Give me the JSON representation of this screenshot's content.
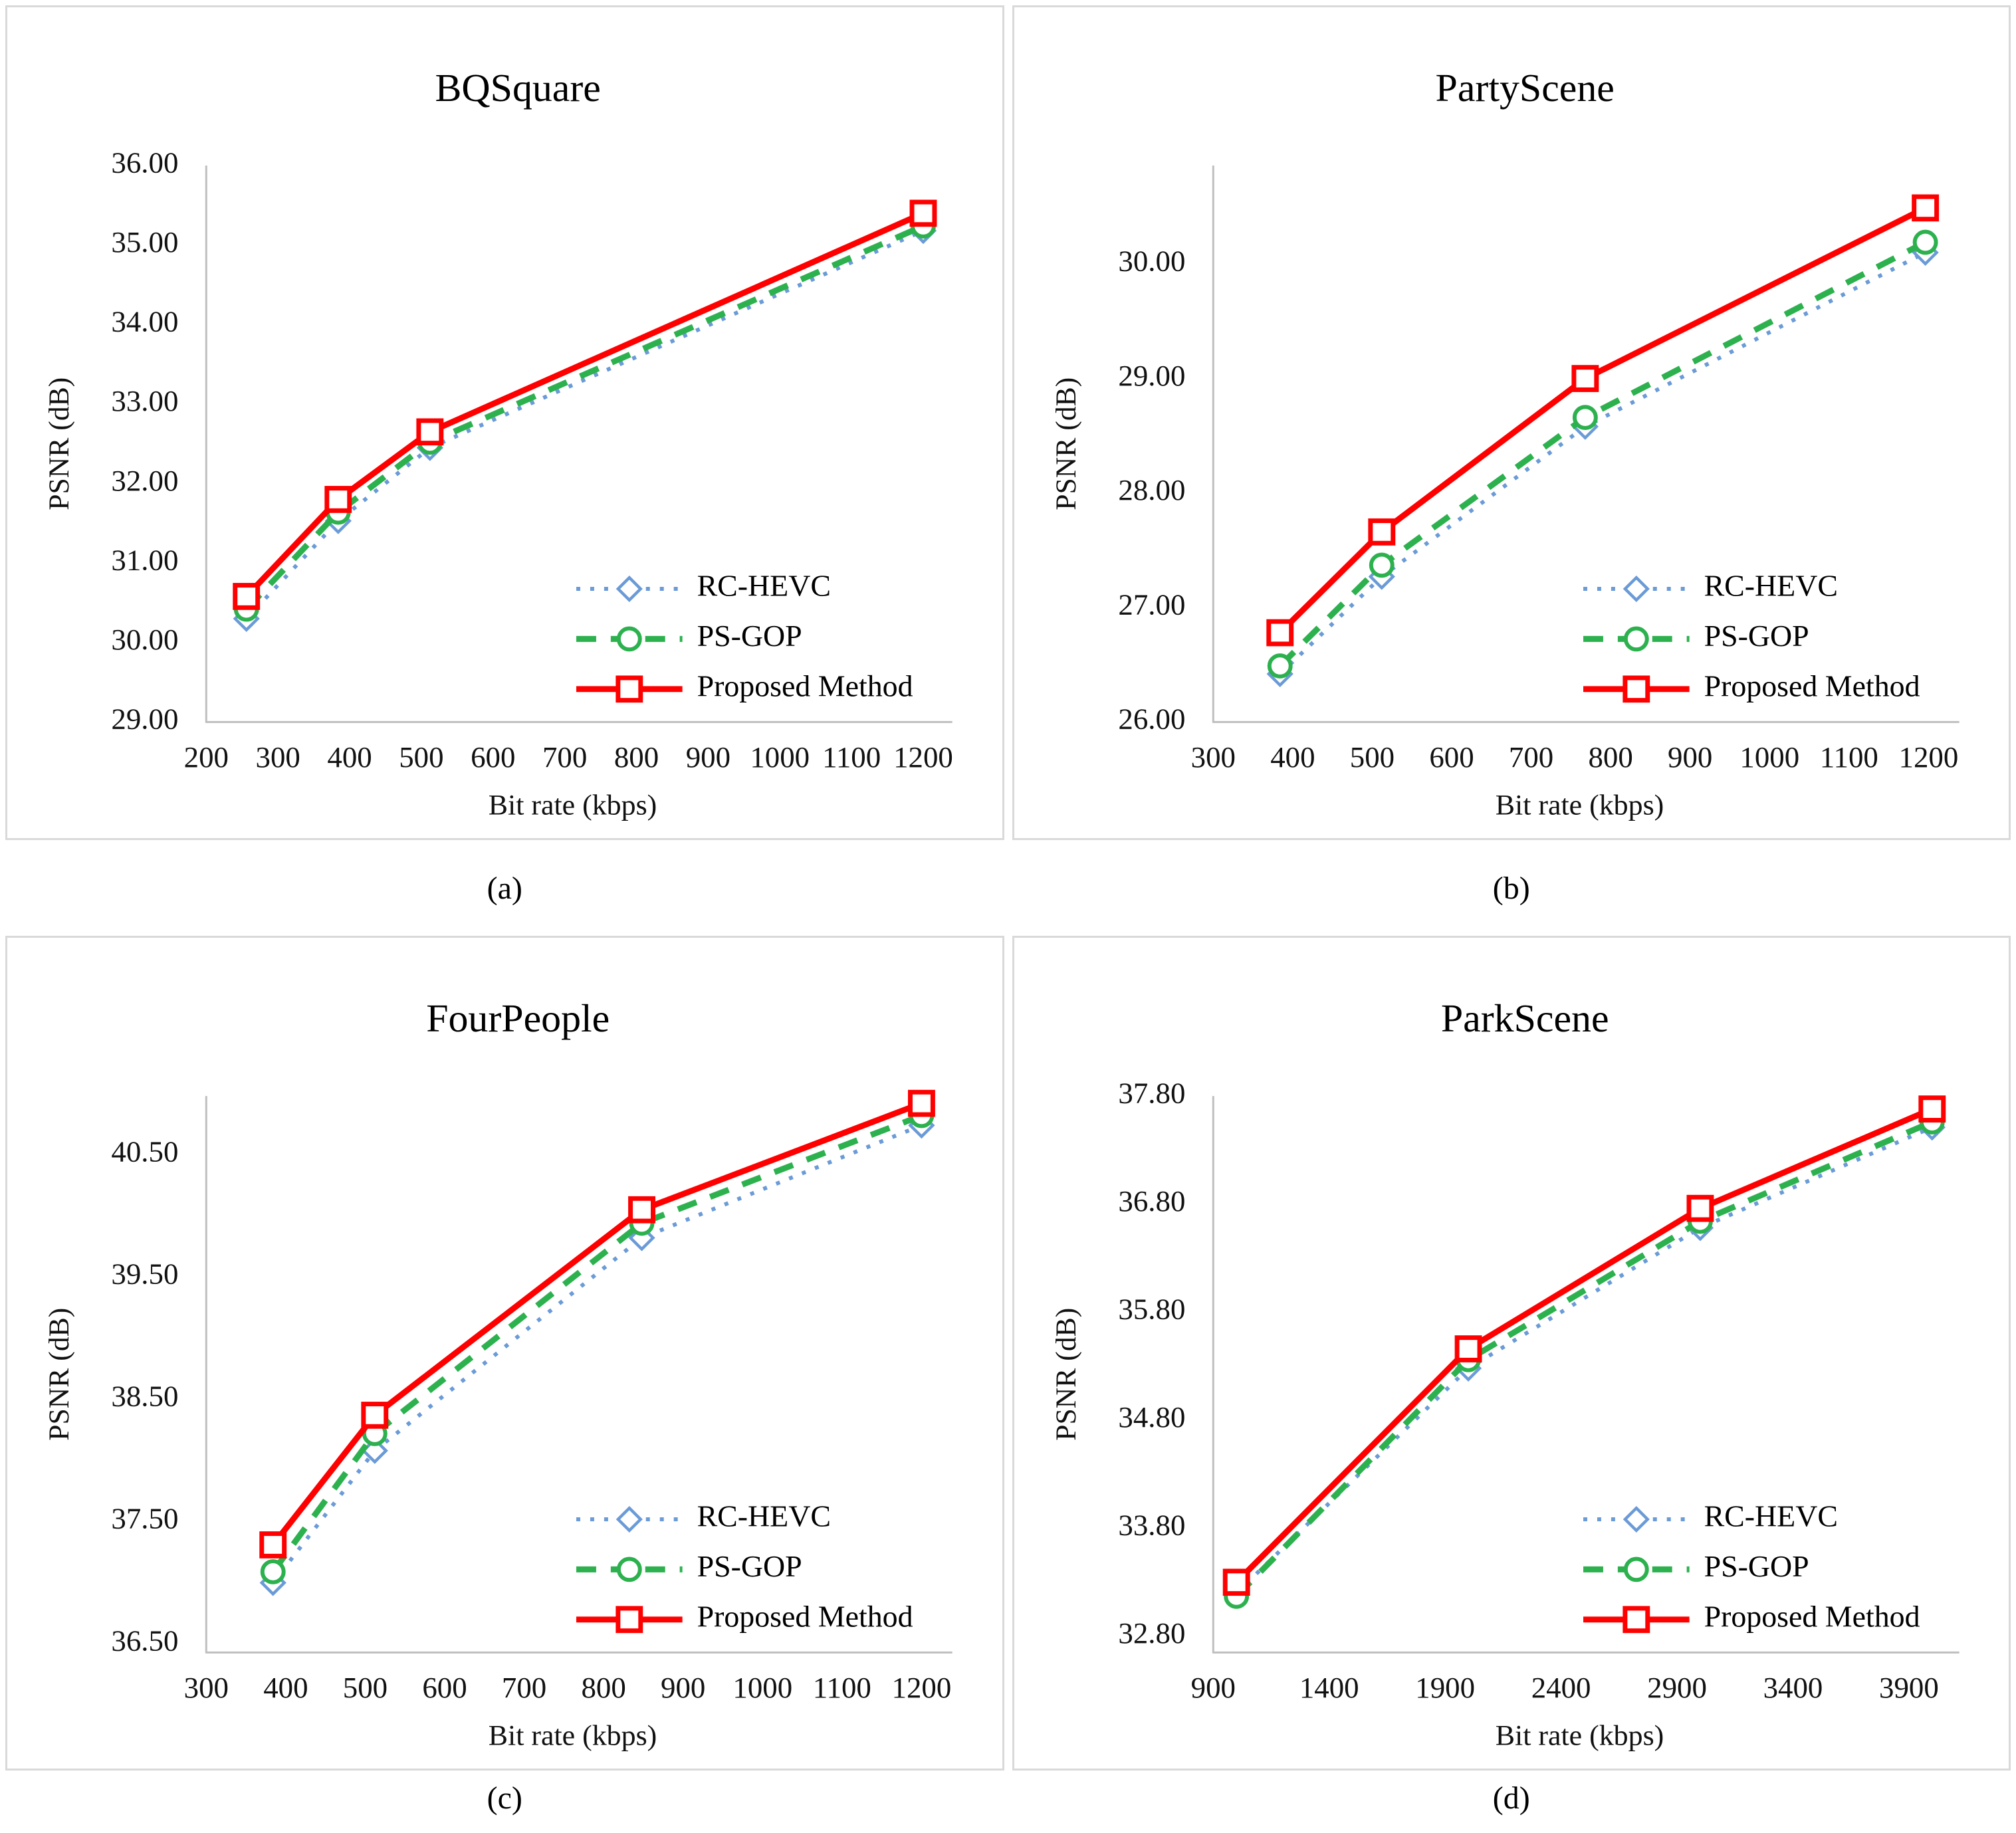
{
  "figure": {
    "panel_labels": [
      "(a)",
      "(b)",
      "(c)",
      "(d)"
    ]
  },
  "colors": {
    "rc_hevc": "#6b9bd7",
    "ps_gop": "#2db14e",
    "proposed": "#ff0000",
    "axis": "#bfbfbf",
    "panel_border": "#d9d9d9",
    "text": "#111111"
  },
  "legend": {
    "items": [
      "RC-HEVC",
      "PS-GOP",
      "Proposed Method"
    ],
    "position": "lower right"
  },
  "chart_data": [
    {
      "type": "line",
      "title": "BQSquare",
      "xlabel": "Bit rate (kbps)",
      "ylabel": "PSNR (dB)",
      "grid": false,
      "x_range": [
        200,
        1222
      ],
      "y_range": [
        29.0,
        36.0
      ],
      "x_ticks": [
        200,
        300,
        400,
        500,
        600,
        700,
        800,
        900,
        1000,
        1100,
        1200
      ],
      "y_ticks": [
        29,
        30,
        31,
        32,
        33,
        34,
        35,
        36
      ],
      "y_tick_labels": [
        "29.00",
        "30.00",
        "31.00",
        "32.00",
        "33.00",
        "34.00",
        "35.00",
        "36.00"
      ],
      "series": [
        {
          "name": "RC-HEVC",
          "color": "#6b9bd7",
          "line": "dotted",
          "marker": "diamond",
          "x": [
            256,
            384,
            512,
            1200
          ],
          "y": [
            30.3,
            31.53,
            32.45,
            35.18
          ]
        },
        {
          "name": "PS-GOP",
          "color": "#2db14e",
          "line": "dashed",
          "marker": "circle",
          "x": [
            256,
            384,
            512,
            1200
          ],
          "y": [
            30.42,
            31.64,
            32.52,
            35.24
          ]
        },
        {
          "name": "Proposed Method",
          "color": "#ff0000",
          "line": "solid",
          "marker": "square",
          "x": [
            256,
            384,
            512,
            1200
          ],
          "y": [
            30.58,
            31.8,
            32.65,
            35.4
          ]
        }
      ]
    },
    {
      "type": "line",
      "title": "PartyScene",
      "xlabel": "Bit rate (kbps)",
      "ylabel": "PSNR (dB)",
      "grid": false,
      "x_range": [
        300,
        1222
      ],
      "y_range": [
        26.0,
        30.86
      ],
      "x_ticks": [
        300,
        400,
        500,
        600,
        700,
        800,
        900,
        1000,
        1100,
        1200
      ],
      "y_ticks": [
        26,
        27,
        28,
        29,
        30
      ],
      "y_tick_labels": [
        "26.00",
        "27.00",
        "28.00",
        "29.00",
        "30.00"
      ],
      "series": [
        {
          "name": "RC-HEVC",
          "color": "#6b9bd7",
          "line": "dotted",
          "marker": "diamond",
          "x": [
            384,
            512,
            768,
            1196
          ],
          "y": [
            26.42,
            27.27,
            28.58,
            30.1
          ]
        },
        {
          "name": "PS-GOP",
          "color": "#2db14e",
          "line": "dashed",
          "marker": "circle",
          "x": [
            384,
            512,
            768,
            1196
          ],
          "y": [
            26.49,
            27.37,
            28.66,
            30.19
          ]
        },
        {
          "name": "Proposed Method",
          "color": "#ff0000",
          "line": "solid",
          "marker": "square",
          "x": [
            384,
            512,
            768,
            1196
          ],
          "y": [
            26.78,
            27.66,
            29.0,
            30.49
          ]
        }
      ]
    },
    {
      "type": "line",
      "title": "FourPeople",
      "xlabel": "Bit rate (kbps)",
      "ylabel": "PSNR (dB)",
      "grid": false,
      "x_range": [
        300,
        1222
      ],
      "y_range": [
        36.43,
        40.98
      ],
      "x_ticks": [
        300,
        400,
        500,
        600,
        700,
        800,
        900,
        1000,
        1100,
        1200
      ],
      "y_ticks": [
        36.5,
        37.5,
        38.5,
        39.5,
        40.5
      ],
      "y_tick_labels": [
        "36.50",
        "37.50",
        "38.50",
        "39.50",
        "40.50"
      ],
      "series": [
        {
          "name": "RC-HEVC",
          "color": "#6b9bd7",
          "line": "dotted",
          "marker": "diamond",
          "x": [
            384,
            512,
            848,
            1200
          ],
          "y": [
            37.0,
            38.08,
            39.82,
            40.74
          ]
        },
        {
          "name": "PS-GOP",
          "color": "#2db14e",
          "line": "dashed",
          "marker": "circle",
          "x": [
            384,
            512,
            848,
            1200
          ],
          "y": [
            37.09,
            38.22,
            39.94,
            40.82
          ]
        },
        {
          "name": "Proposed Method",
          "color": "#ff0000",
          "line": "solid",
          "marker": "square",
          "x": [
            384,
            512,
            848,
            1200
          ],
          "y": [
            37.31,
            38.37,
            40.05,
            40.92
          ]
        }
      ]
    },
    {
      "type": "line",
      "title": "ParkScene",
      "xlabel": "Bit rate (kbps)",
      "ylabel": "PSNR (dB)",
      "grid": false,
      "x_range": [
        900,
        4060
      ],
      "y_range": [
        32.65,
        37.8
      ],
      "x_ticks": [
        900,
        1400,
        1900,
        2400,
        2900,
        3400,
        3900
      ],
      "y_ticks": [
        32.8,
        33.8,
        34.8,
        35.8,
        36.8,
        37.8
      ],
      "y_tick_labels": [
        "32.80",
        "33.80",
        "34.80",
        "35.80",
        "36.80",
        "37.80"
      ],
      "series": [
        {
          "name": "RC-HEVC",
          "color": "#6b9bd7",
          "line": "dotted",
          "marker": "diamond",
          "x": [
            1000,
            2000,
            3000,
            4000
          ],
          "y": [
            33.2,
            35.28,
            36.58,
            37.51
          ]
        },
        {
          "name": "PS-GOP",
          "color": "#2db14e",
          "line": "dashed",
          "marker": "circle",
          "x": [
            1000,
            2000,
            3000,
            4000
          ],
          "y": [
            33.17,
            35.36,
            36.64,
            37.56
          ]
        },
        {
          "name": "Proposed Method",
          "color": "#ff0000",
          "line": "solid",
          "marker": "square",
          "x": [
            1000,
            2000,
            3000,
            4000
          ],
          "y": [
            33.3,
            35.46,
            36.76,
            37.68
          ]
        }
      ]
    }
  ]
}
